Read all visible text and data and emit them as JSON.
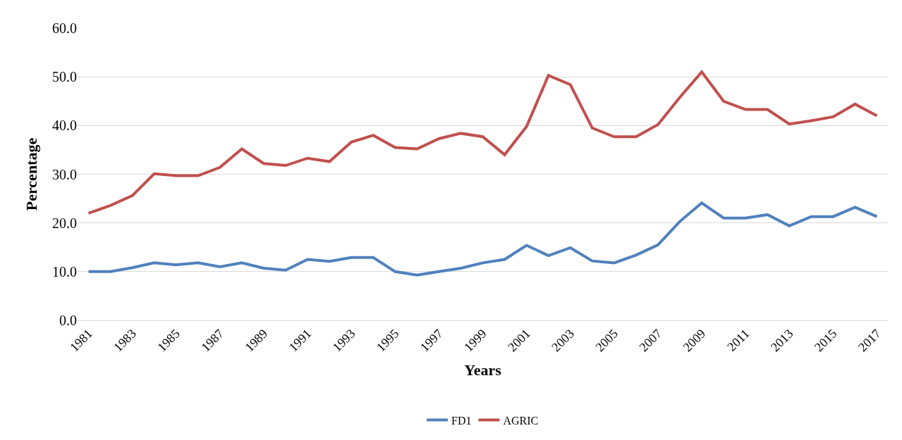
{
  "chart_data": {
    "type": "line",
    "xlabel": "Years",
    "ylabel": "Percentage",
    "categories": [
      "1981",
      null,
      "1983",
      null,
      "1985",
      null,
      "1987",
      null,
      "1989",
      null,
      "1991",
      null,
      "1993",
      null,
      "1995",
      null,
      "1997",
      null,
      "1999",
      null,
      "2001",
      null,
      "2003",
      null,
      "2005",
      null,
      "2007",
      null,
      "2009",
      null,
      "2011",
      null,
      "2013",
      null,
      "2015",
      null,
      "2017"
    ],
    "series": [
      {
        "name": "FD1",
        "color": "#4f81bd",
        "values": [
          10.0,
          10.0,
          10.8,
          11.8,
          11.4,
          11.8,
          11.0,
          11.8,
          10.7,
          10.3,
          12.5,
          12.1,
          12.9,
          12.9,
          10.0,
          9.3,
          10.0,
          10.7,
          11.8,
          12.5,
          15.4,
          13.3,
          14.9,
          12.2,
          11.8,
          13.4,
          15.5,
          20.3,
          24.1,
          21.0,
          21.0,
          21.7,
          19.4,
          21.3,
          21.3,
          23.2,
          21.3
        ]
      },
      {
        "name": "AGRIC",
        "color": "#c0504d",
        "values": [
          22.0,
          23.6,
          25.6,
          30.1,
          29.7,
          29.7,
          31.4,
          35.2,
          32.2,
          31.8,
          33.3,
          32.6,
          36.6,
          38.0,
          35.5,
          35.2,
          37.3,
          38.4,
          37.7,
          34.0,
          39.8,
          50.3,
          48.4,
          39.5,
          37.7,
          37.7,
          40.2,
          45.8,
          51.0,
          45.0,
          43.3,
          43.3,
          40.3,
          41.0,
          41.8,
          44.4,
          42.0
        ]
      }
    ],
    "ylim": [
      0,
      60
    ],
    "yticks": [
      {
        "value": 0,
        "label": "0.0"
      },
      {
        "value": 10,
        "label": "10.0"
      },
      {
        "value": 20,
        "label": "20.0"
      },
      {
        "value": 30,
        "label": "30.0"
      },
      {
        "value": 40,
        "label": "40.0"
      },
      {
        "value": 50,
        "label": "50.0"
      },
      {
        "value": 60,
        "label": "60.0"
      }
    ],
    "grid": "y",
    "legend": "bottom",
    "marker": "none",
    "line_style": "solid"
  }
}
